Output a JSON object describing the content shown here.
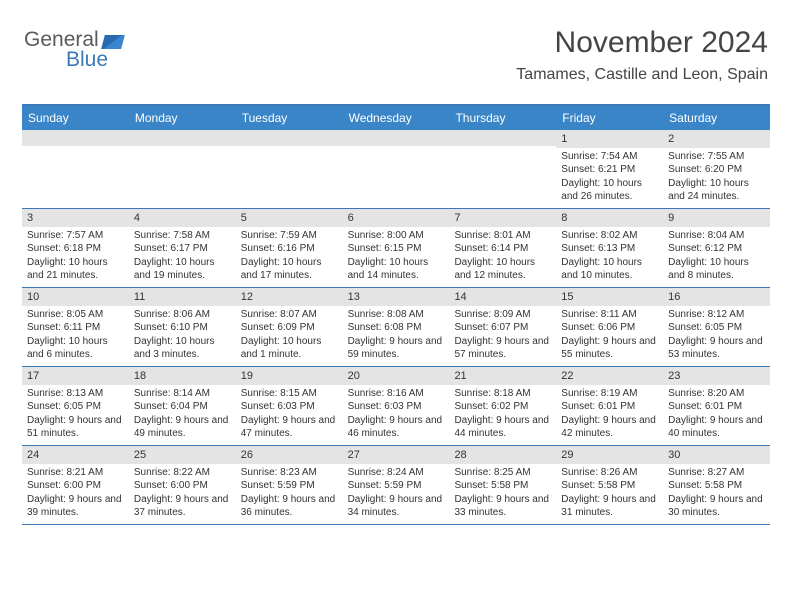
{
  "brand": {
    "part1": "General",
    "part2": "Blue"
  },
  "title": "November 2024",
  "location": "Tamames, Castille and Leon, Spain",
  "colors": {
    "header_bg": "#3a85c8",
    "header_text": "#ffffff",
    "border": "#3a7ab8",
    "daynum_bg": "#e4e4e4",
    "text": "#333333",
    "brand_gray": "#5a5a5a",
    "brand_blue": "#3a7ab8"
  },
  "weekdays": [
    "Sunday",
    "Monday",
    "Tuesday",
    "Wednesday",
    "Thursday",
    "Friday",
    "Saturday"
  ],
  "weeks": [
    [
      {
        "day": "",
        "sunrise": "",
        "sunset": "",
        "daylight": ""
      },
      {
        "day": "",
        "sunrise": "",
        "sunset": "",
        "daylight": ""
      },
      {
        "day": "",
        "sunrise": "",
        "sunset": "",
        "daylight": ""
      },
      {
        "day": "",
        "sunrise": "",
        "sunset": "",
        "daylight": ""
      },
      {
        "day": "",
        "sunrise": "",
        "sunset": "",
        "daylight": ""
      },
      {
        "day": "1",
        "sunrise": "Sunrise: 7:54 AM",
        "sunset": "Sunset: 6:21 PM",
        "daylight": "Daylight: 10 hours and 26 minutes."
      },
      {
        "day": "2",
        "sunrise": "Sunrise: 7:55 AM",
        "sunset": "Sunset: 6:20 PM",
        "daylight": "Daylight: 10 hours and 24 minutes."
      }
    ],
    [
      {
        "day": "3",
        "sunrise": "Sunrise: 7:57 AM",
        "sunset": "Sunset: 6:18 PM",
        "daylight": "Daylight: 10 hours and 21 minutes."
      },
      {
        "day": "4",
        "sunrise": "Sunrise: 7:58 AM",
        "sunset": "Sunset: 6:17 PM",
        "daylight": "Daylight: 10 hours and 19 minutes."
      },
      {
        "day": "5",
        "sunrise": "Sunrise: 7:59 AM",
        "sunset": "Sunset: 6:16 PM",
        "daylight": "Daylight: 10 hours and 17 minutes."
      },
      {
        "day": "6",
        "sunrise": "Sunrise: 8:00 AM",
        "sunset": "Sunset: 6:15 PM",
        "daylight": "Daylight: 10 hours and 14 minutes."
      },
      {
        "day": "7",
        "sunrise": "Sunrise: 8:01 AM",
        "sunset": "Sunset: 6:14 PM",
        "daylight": "Daylight: 10 hours and 12 minutes."
      },
      {
        "day": "8",
        "sunrise": "Sunrise: 8:02 AM",
        "sunset": "Sunset: 6:13 PM",
        "daylight": "Daylight: 10 hours and 10 minutes."
      },
      {
        "day": "9",
        "sunrise": "Sunrise: 8:04 AM",
        "sunset": "Sunset: 6:12 PM",
        "daylight": "Daylight: 10 hours and 8 minutes."
      }
    ],
    [
      {
        "day": "10",
        "sunrise": "Sunrise: 8:05 AM",
        "sunset": "Sunset: 6:11 PM",
        "daylight": "Daylight: 10 hours and 6 minutes."
      },
      {
        "day": "11",
        "sunrise": "Sunrise: 8:06 AM",
        "sunset": "Sunset: 6:10 PM",
        "daylight": "Daylight: 10 hours and 3 minutes."
      },
      {
        "day": "12",
        "sunrise": "Sunrise: 8:07 AM",
        "sunset": "Sunset: 6:09 PM",
        "daylight": "Daylight: 10 hours and 1 minute."
      },
      {
        "day": "13",
        "sunrise": "Sunrise: 8:08 AM",
        "sunset": "Sunset: 6:08 PM",
        "daylight": "Daylight: 9 hours and 59 minutes."
      },
      {
        "day": "14",
        "sunrise": "Sunrise: 8:09 AM",
        "sunset": "Sunset: 6:07 PM",
        "daylight": "Daylight: 9 hours and 57 minutes."
      },
      {
        "day": "15",
        "sunrise": "Sunrise: 8:11 AM",
        "sunset": "Sunset: 6:06 PM",
        "daylight": "Daylight: 9 hours and 55 minutes."
      },
      {
        "day": "16",
        "sunrise": "Sunrise: 8:12 AM",
        "sunset": "Sunset: 6:05 PM",
        "daylight": "Daylight: 9 hours and 53 minutes."
      }
    ],
    [
      {
        "day": "17",
        "sunrise": "Sunrise: 8:13 AM",
        "sunset": "Sunset: 6:05 PM",
        "daylight": "Daylight: 9 hours and 51 minutes."
      },
      {
        "day": "18",
        "sunrise": "Sunrise: 8:14 AM",
        "sunset": "Sunset: 6:04 PM",
        "daylight": "Daylight: 9 hours and 49 minutes."
      },
      {
        "day": "19",
        "sunrise": "Sunrise: 8:15 AM",
        "sunset": "Sunset: 6:03 PM",
        "daylight": "Daylight: 9 hours and 47 minutes."
      },
      {
        "day": "20",
        "sunrise": "Sunrise: 8:16 AM",
        "sunset": "Sunset: 6:03 PM",
        "daylight": "Daylight: 9 hours and 46 minutes."
      },
      {
        "day": "21",
        "sunrise": "Sunrise: 8:18 AM",
        "sunset": "Sunset: 6:02 PM",
        "daylight": "Daylight: 9 hours and 44 minutes."
      },
      {
        "day": "22",
        "sunrise": "Sunrise: 8:19 AM",
        "sunset": "Sunset: 6:01 PM",
        "daylight": "Daylight: 9 hours and 42 minutes."
      },
      {
        "day": "23",
        "sunrise": "Sunrise: 8:20 AM",
        "sunset": "Sunset: 6:01 PM",
        "daylight": "Daylight: 9 hours and 40 minutes."
      }
    ],
    [
      {
        "day": "24",
        "sunrise": "Sunrise: 8:21 AM",
        "sunset": "Sunset: 6:00 PM",
        "daylight": "Daylight: 9 hours and 39 minutes."
      },
      {
        "day": "25",
        "sunrise": "Sunrise: 8:22 AM",
        "sunset": "Sunset: 6:00 PM",
        "daylight": "Daylight: 9 hours and 37 minutes."
      },
      {
        "day": "26",
        "sunrise": "Sunrise: 8:23 AM",
        "sunset": "Sunset: 5:59 PM",
        "daylight": "Daylight: 9 hours and 36 minutes."
      },
      {
        "day": "27",
        "sunrise": "Sunrise: 8:24 AM",
        "sunset": "Sunset: 5:59 PM",
        "daylight": "Daylight: 9 hours and 34 minutes."
      },
      {
        "day": "28",
        "sunrise": "Sunrise: 8:25 AM",
        "sunset": "Sunset: 5:58 PM",
        "daylight": "Daylight: 9 hours and 33 minutes."
      },
      {
        "day": "29",
        "sunrise": "Sunrise: 8:26 AM",
        "sunset": "Sunset: 5:58 PM",
        "daylight": "Daylight: 9 hours and 31 minutes."
      },
      {
        "day": "30",
        "sunrise": "Sunrise: 8:27 AM",
        "sunset": "Sunset: 5:58 PM",
        "daylight": "Daylight: 9 hours and 30 minutes."
      }
    ]
  ]
}
